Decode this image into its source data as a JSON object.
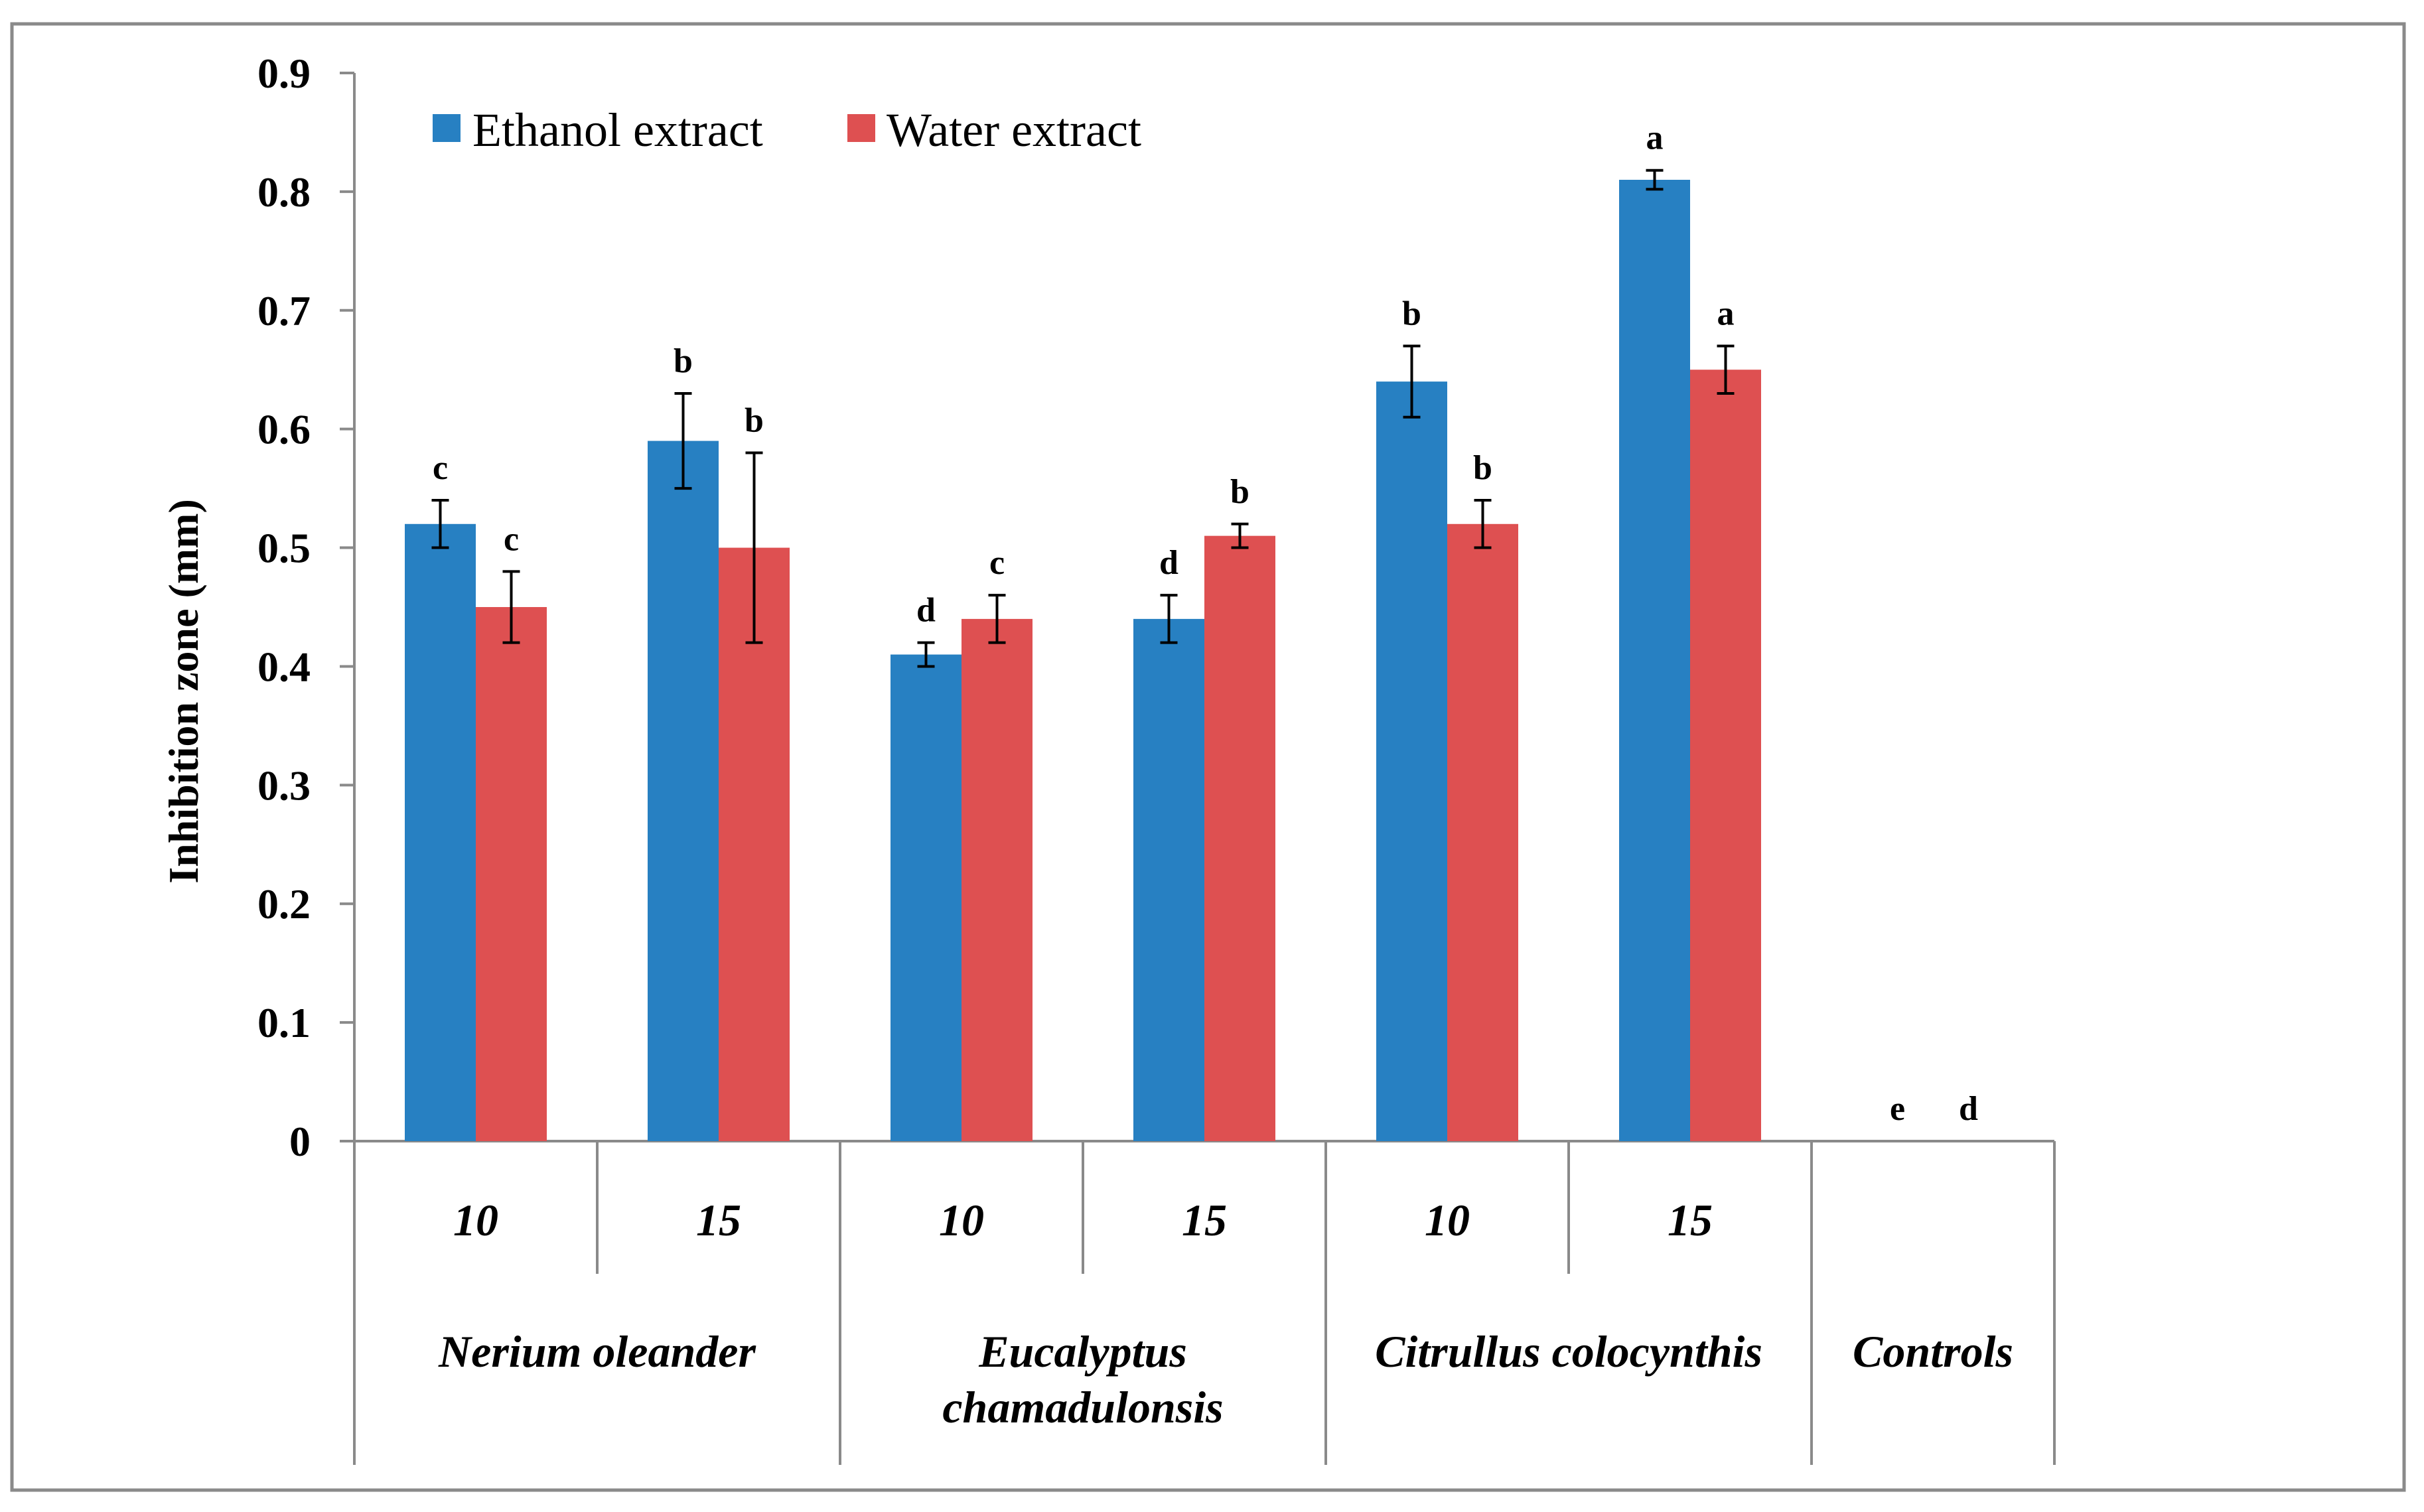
{
  "chart_data": {
    "type": "bar",
    "title": "",
    "xlabel": "",
    "ylabel": "Inhibition zone (mm)",
    "ylim": [
      0,
      0.9
    ],
    "yticks": [
      "0",
      "0.1",
      "0.2",
      "0.3",
      "0.4",
      "0.5",
      "0.6",
      "0.7",
      "0.8",
      "0.9"
    ],
    "legend_position": "top-left",
    "colors": {
      "Ethanol extract": "#2780C2",
      "Water extract": "#DE5051"
    },
    "categories": [
      {
        "sub": "10",
        "group": "Nerium oleander"
      },
      {
        "sub": "15",
        "group": "Nerium oleander"
      },
      {
        "sub": "10",
        "group": "Eucalyptus chamadulonsis"
      },
      {
        "sub": "15",
        "group": "Eucalyptus chamadulonsis"
      },
      {
        "sub": "10",
        "group": "Citrullus colocynthis"
      },
      {
        "sub": "15",
        "group": "Citrullus colocynthis"
      },
      {
        "sub": "",
        "group": "Controls"
      }
    ],
    "groups": [
      {
        "name": "Nerium oleander",
        "lines": [
          "Nerium oleander"
        ]
      },
      {
        "name": "Eucalyptus chamadulonsis",
        "lines": [
          "Eucalyptus",
          "chamadulonsis"
        ]
      },
      {
        "name": "Citrullus colocynthis",
        "lines": [
          "Citrullus colocynthis"
        ]
      },
      {
        "name": "Controls",
        "lines": [
          "Controls"
        ]
      }
    ],
    "series": [
      {
        "name": "Ethanol extract",
        "values": [
          0.52,
          0.59,
          0.41,
          0.44,
          0.64,
          0.81,
          0
        ],
        "errors": [
          0.02,
          0.04,
          0.01,
          0.02,
          0.03,
          0.008,
          0
        ],
        "letters": [
          "c",
          "b",
          "d",
          "d",
          "b",
          "a",
          "e"
        ]
      },
      {
        "name": "Water extract",
        "values": [
          0.45,
          0.5,
          0.44,
          0.51,
          0.52,
          0.65,
          0
        ],
        "errors": [
          0.03,
          0.08,
          0.02,
          0.01,
          0.02,
          0.02,
          0
        ],
        "letters": [
          "c",
          "b",
          "c",
          "b",
          "b",
          "a",
          "d"
        ]
      }
    ]
  }
}
